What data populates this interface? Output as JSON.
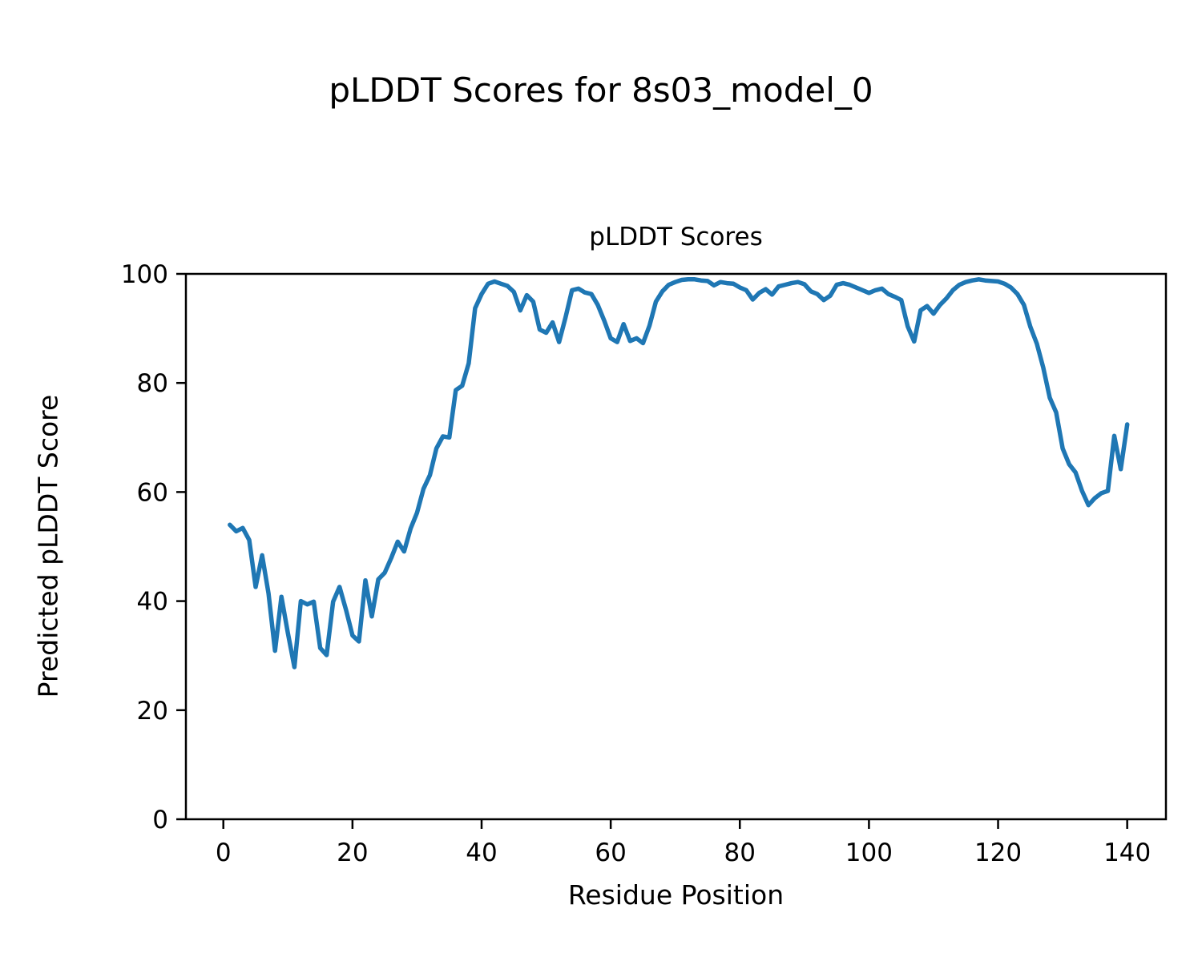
{
  "figure": {
    "title": "pLDDT Scores for 8s03_model_0"
  },
  "chart_data": {
    "type": "line",
    "title": "pLDDT Scores",
    "xlabel": "Residue Position",
    "ylabel": "Predicted pLDDT Score",
    "legend": "none",
    "grid": false,
    "x_ticks": [
      0,
      20,
      40,
      60,
      80,
      100,
      120,
      140
    ],
    "y_ticks": [
      0,
      20,
      40,
      60,
      80,
      100
    ],
    "xlim": [
      -5.8,
      146
    ],
    "ylim": [
      0,
      100
    ],
    "line_color": "#1f77b4",
    "spine_color": "#000000",
    "series": [
      {
        "name": "pLDDT",
        "x_start": 1,
        "x_step": 1,
        "values": [
          54.0,
          52.8,
          53.4,
          51.2,
          42.6,
          48.4,
          41.4,
          30.9,
          40.8,
          34.1,
          27.9,
          40.0,
          39.4,
          39.9,
          31.4,
          30.1,
          39.9,
          42.6,
          38.4,
          33.7,
          32.6,
          43.8,
          37.2,
          44.0,
          45.2,
          47.9,
          50.9,
          49.1,
          53.3,
          56.2,
          60.6,
          63.1,
          68.0,
          70.2,
          70.0,
          78.7,
          79.5,
          83.6,
          93.7,
          96.3,
          98.2,
          98.6,
          98.2,
          97.8,
          96.7,
          93.3,
          96.1,
          94.9,
          89.8,
          89.2,
          91.1,
          87.5,
          92.0,
          97.0,
          97.3,
          96.6,
          96.3,
          94.3,
          91.4,
          88.2,
          87.5,
          90.8,
          87.7,
          88.2,
          87.3,
          90.5,
          94.9,
          96.8,
          98.0,
          98.5,
          98.9,
          99.0,
          99.0,
          98.8,
          98.7,
          97.9,
          98.5,
          98.3,
          98.2,
          97.5,
          97.0,
          95.3,
          96.5,
          97.2,
          96.2,
          97.7,
          98.0,
          98.3,
          98.5,
          98.1,
          96.8,
          96.3,
          95.2,
          96.0,
          98.0,
          98.3,
          98.0,
          97.5,
          97.0,
          96.5,
          97.0,
          97.3,
          96.3,
          95.8,
          95.2,
          90.4,
          87.6,
          93.3,
          94.1,
          92.7,
          94.3,
          95.5,
          97.0,
          98.0,
          98.5,
          98.8,
          99.0,
          98.8,
          98.7,
          98.6,
          98.2,
          97.5,
          96.3,
          94.3,
          90.3,
          87.2,
          82.8,
          77.3,
          74.6,
          68.0,
          65.1,
          63.6,
          60.2,
          57.6,
          58.9,
          59.8,
          60.2,
          70.3,
          64.2,
          72.4
        ]
      }
    ]
  }
}
